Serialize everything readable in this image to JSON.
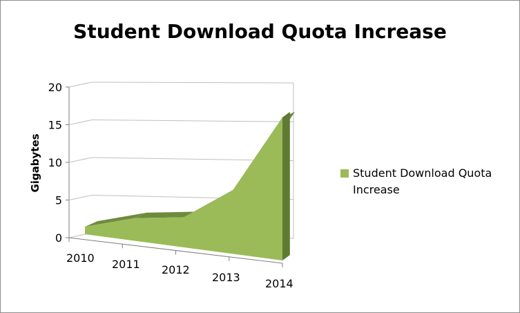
{
  "chart_data": {
    "type": "area",
    "title": "Student Download Quota Increase",
    "xlabel": "",
    "ylabel": "Gigabytes",
    "categories": [
      "2010",
      "2011",
      "2012",
      "2013",
      "2014"
    ],
    "series": [
      {
        "name": "Student Download Quota Increase",
        "values": [
          1,
          3,
          4,
          8.5,
          19
        ]
      }
    ],
    "ylim": [
      0,
      20
    ],
    "yticks": [
      "0",
      "5",
      "10",
      "15",
      "20"
    ],
    "grid": true,
    "legend": "right",
    "style": "3d-area",
    "colors": {
      "area": "#9bbb59",
      "area_dark": "#6e8b3d",
      "grid": "#bfbfbf"
    }
  }
}
